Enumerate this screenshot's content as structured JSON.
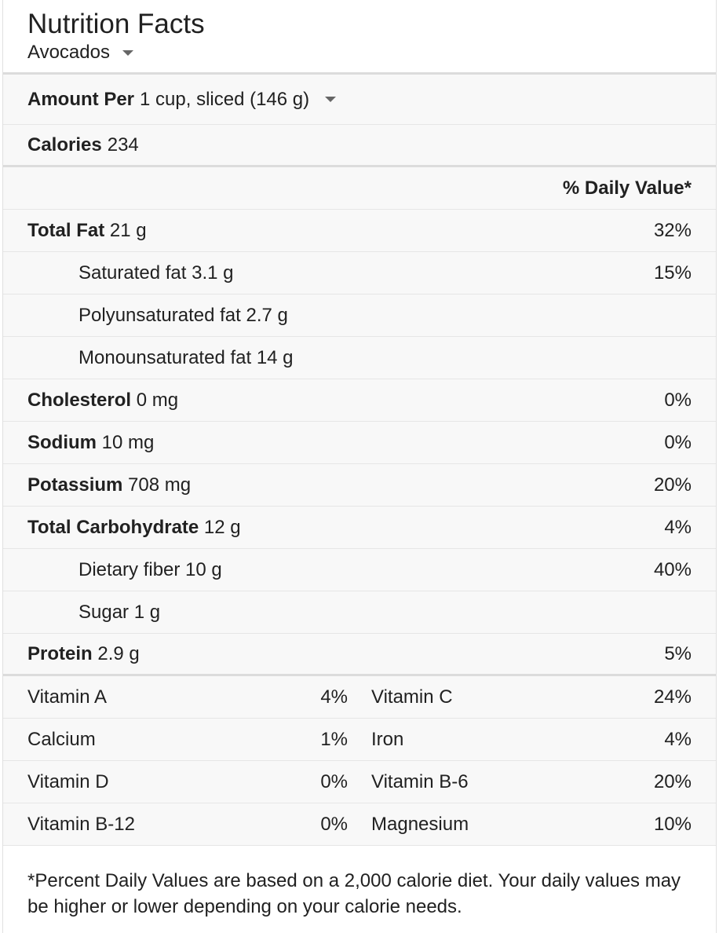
{
  "header": {
    "title": "Nutrition Facts",
    "food": "Avocados"
  },
  "serving": {
    "label": "Amount Per",
    "value": "1 cup, sliced (146 g)"
  },
  "calories": {
    "label": "Calories",
    "value": "234"
  },
  "dv_header": "% Daily Value*",
  "nutrients": [
    {
      "label": "Total Fat",
      "value": "21 g",
      "pct": "32%"
    },
    {
      "label": "Saturated fat 3.1 g",
      "pct": "15%"
    },
    {
      "label": "Polyunsaturated fat 2.7 g",
      "pct": ""
    },
    {
      "label": "Monounsaturated fat 14 g",
      "pct": ""
    },
    {
      "label": "Cholesterol",
      "value": "0 mg",
      "pct": "0%"
    },
    {
      "label": "Sodium",
      "value": "10 mg",
      "pct": "0%"
    },
    {
      "label": "Potassium",
      "value": "708 mg",
      "pct": "20%"
    },
    {
      "label": "Total Carbohydrate",
      "value": "12 g",
      "pct": "4%"
    },
    {
      "label": "Dietary fiber 10 g",
      "pct": "40%"
    },
    {
      "label": "Sugar 1 g",
      "pct": ""
    },
    {
      "label": "Protein",
      "value": "2.9 g",
      "pct": "5%"
    }
  ],
  "vitamins": [
    {
      "left": "Vitamin A",
      "left_pct": "4%",
      "right": "Vitamin C",
      "right_pct": "24%"
    },
    {
      "left": "Calcium",
      "left_pct": "1%",
      "right": "Iron",
      "right_pct": "4%"
    },
    {
      "left": "Vitamin D",
      "left_pct": "0%",
      "right": "Vitamin B-6",
      "right_pct": "20%"
    },
    {
      "left": "Vitamin B-12",
      "left_pct": "0%",
      "right": "Magnesium",
      "right_pct": "10%"
    }
  ],
  "footnote": "*Percent Daily Values are based on a 2,000 calorie diet. Your daily values may be higher or lower depending on your calorie needs."
}
